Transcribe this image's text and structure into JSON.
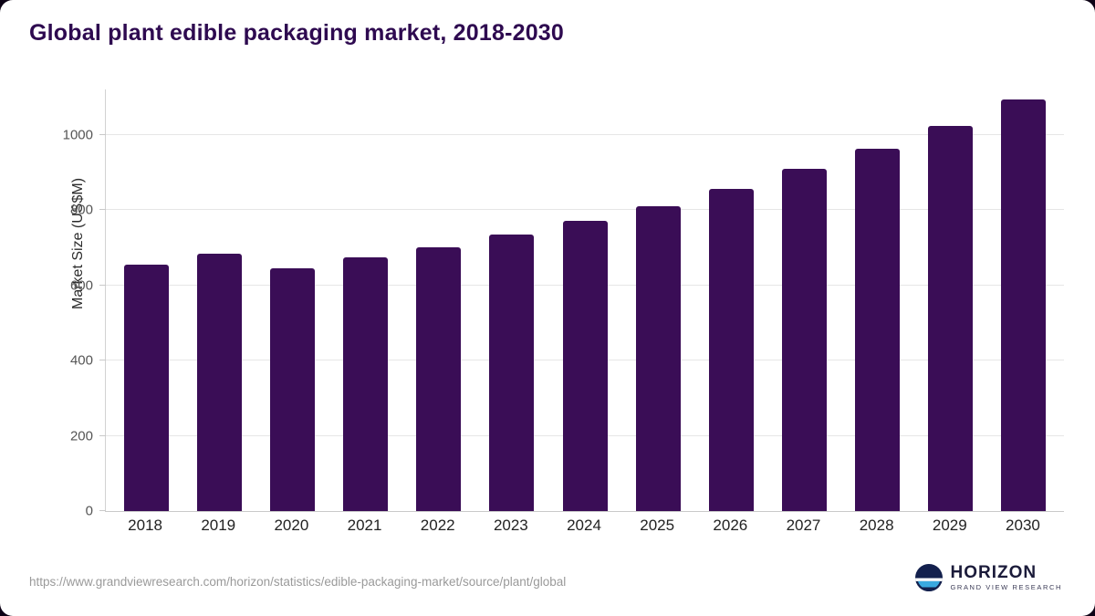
{
  "chart_data": {
    "type": "bar",
    "title": "Global plant edible packaging market, 2018-2030",
    "categories": [
      "2018",
      "2019",
      "2020",
      "2021",
      "2022",
      "2023",
      "2024",
      "2025",
      "2026",
      "2027",
      "2028",
      "2029",
      "2030"
    ],
    "values": [
      655,
      684,
      646,
      675,
      700,
      735,
      772,
      810,
      855,
      908,
      962,
      1022,
      1093
    ],
    "xlabel": "",
    "ylabel": "Market Size (US$M)",
    "ylim": [
      0,
      1120
    ],
    "yticks": [
      0,
      200,
      400,
      600,
      800,
      1000
    ],
    "bar_color": "#3a0d56",
    "grid": true,
    "legend": false
  },
  "footer": {
    "source_url": "https://www.grandviewresearch.com/horizon/statistics/edible-packaging-market/source/plant/global",
    "logo_title": "HORIZON",
    "logo_subtitle": "GRAND VIEW RESEARCH"
  },
  "colors": {
    "bar": "#3a0d56",
    "title": "#2e0a50",
    "gridline": "#e6e6e6",
    "background": "#ffffff",
    "logo_circle": "#13204d",
    "logo_water": "#3aa9e0"
  }
}
